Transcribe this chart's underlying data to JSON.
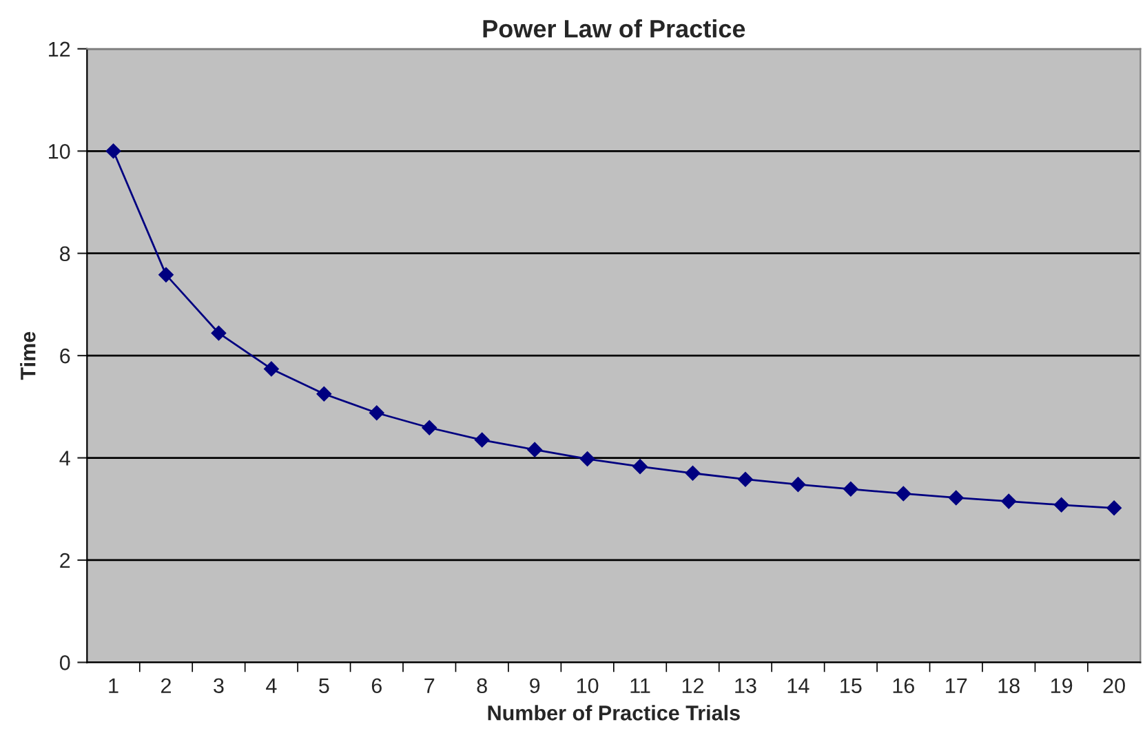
{
  "chart_data": {
    "type": "line",
    "title": "Power Law of Practice",
    "xlabel": "Number of Practice Trials",
    "ylabel": "Time",
    "categories": [
      "1",
      "2",
      "3",
      "4",
      "5",
      "6",
      "7",
      "8",
      "9",
      "10",
      "11",
      "12",
      "13",
      "14",
      "15",
      "16",
      "17",
      "18",
      "19",
      "20"
    ],
    "series": [
      {
        "color": "#000080",
        "values": [
          10.0,
          7.58,
          6.44,
          5.74,
          5.25,
          4.88,
          4.59,
          4.35,
          4.16,
          3.98,
          3.83,
          3.7,
          3.58,
          3.48,
          3.39,
          3.3,
          3.22,
          3.15,
          3.08,
          3.02
        ]
      }
    ],
    "ylim": [
      0,
      12
    ],
    "yticks": [
      0,
      2,
      4,
      6,
      8,
      10,
      12
    ],
    "grid": "y",
    "legend": false,
    "marker": "diamond",
    "line_style": "solid"
  }
}
